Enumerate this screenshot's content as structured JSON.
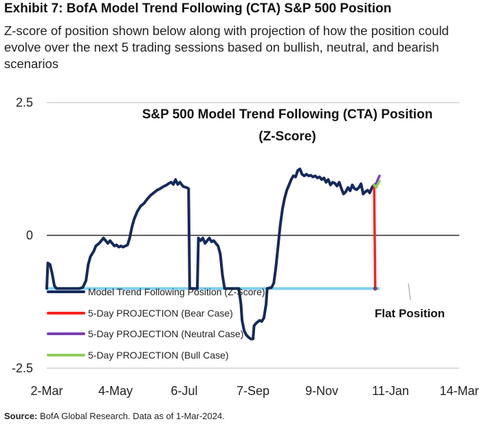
{
  "header": {
    "title": "Exhibit 7: BofA Model Trend Following (CTA) S&P 500 Position",
    "subtitle": "Z-score of position shown below along with projection of how the position could evolve over the next 5 trading sessions based on bullish, neutral, and bearish scenarios"
  },
  "footer": {
    "source_label": "Source:",
    "source_text": "BofA Global Research. Data as of 1-Mar-2024."
  },
  "colors": {
    "main": "#152a5c",
    "bear": "#ff1f1f",
    "neutral": "#7b3fb5",
    "bull": "#8ed05a",
    "flat": "#7fd0ee"
  },
  "chart_data": {
    "type": "line",
    "title_line1": "S&P 500 Model Trend Following (CTA) Position",
    "title_line2": "(Z-Score)",
    "xlabel": "",
    "ylabel": "",
    "x_range": [
      "2-Mar-2023",
      "14-Mar-2024"
    ],
    "ylim": [
      -2.5,
      2.5
    ],
    "y_tick_labels": [
      "2.5",
      "0",
      "-2.5"
    ],
    "y_tick_values": [
      2.5,
      0,
      -2.5
    ],
    "x_tick_labels": [
      "2-Mar",
      "4-May",
      "6-Jul",
      "7-Sep",
      "9-Nov",
      "11-Jan",
      "14-Mar"
    ],
    "x_tick_days": [
      0,
      63,
      126,
      189,
      252,
      315,
      378
    ],
    "flat_position_value": -1.0,
    "flat_position_label": "Flat Position",
    "series": [
      {
        "name": "Model Trend Following Position (Z-Score)",
        "color_key": "main",
        "points": [
          [
            0,
            -1.0
          ],
          [
            1,
            -0.52
          ],
          [
            3,
            -0.55
          ],
          [
            5,
            -0.72
          ],
          [
            7,
            -0.95
          ],
          [
            9,
            -1.0
          ],
          [
            30,
            -1.0
          ],
          [
            33,
            -0.98
          ],
          [
            36,
            -0.85
          ],
          [
            38,
            -0.55
          ],
          [
            40,
            -0.4
          ],
          [
            43,
            -0.3
          ],
          [
            45,
            -0.2
          ],
          [
            48,
            -0.15
          ],
          [
            50,
            -0.1
          ],
          [
            52,
            -0.05
          ],
          [
            54,
            -0.1
          ],
          [
            56,
            -0.15
          ],
          [
            58,
            -0.1
          ],
          [
            60,
            -0.15
          ],
          [
            62,
            -0.2
          ],
          [
            64,
            -0.18
          ],
          [
            66,
            -0.22
          ],
          [
            68,
            -0.2
          ],
          [
            70,
            -0.22
          ],
          [
            72,
            -0.2
          ],
          [
            74,
            -0.18
          ],
          [
            76,
            -0.05
          ],
          [
            78,
            0.15
          ],
          [
            80,
            0.3
          ],
          [
            83,
            0.45
          ],
          [
            86,
            0.55
          ],
          [
            89,
            0.6
          ],
          [
            92,
            0.68
          ],
          [
            95,
            0.75
          ],
          [
            98,
            0.8
          ],
          [
            101,
            0.85
          ],
          [
            104,
            0.88
          ],
          [
            107,
            0.92
          ],
          [
            110,
            0.95
          ],
          [
            112,
            0.98
          ],
          [
            114,
            1.0
          ],
          [
            116,
            0.96
          ],
          [
            118,
            1.05
          ],
          [
            120,
            0.96
          ],
          [
            122,
            1.0
          ],
          [
            125,
            0.92
          ],
          [
            128,
            0.9
          ],
          [
            130,
            0.88
          ],
          [
            131,
            -1.0
          ],
          [
            138,
            -1.0
          ],
          [
            139,
            -0.05
          ],
          [
            141,
            -0.1
          ],
          [
            143,
            -0.05
          ],
          [
            145,
            -0.15
          ],
          [
            147,
            -0.1
          ],
          [
            149,
            -0.05
          ],
          [
            151,
            -0.12
          ],
          [
            153,
            -0.1
          ],
          [
            155,
            -0.15
          ],
          [
            157,
            -0.2
          ],
          [
            159,
            -0.35
          ],
          [
            161,
            -0.75
          ],
          [
            163,
            -1.0
          ],
          [
            176,
            -1.0
          ],
          [
            178,
            -1.3
          ],
          [
            179,
            -1.6
          ],
          [
            181,
            -1.8
          ],
          [
            183,
            -1.88
          ],
          [
            185,
            -1.92
          ],
          [
            187,
            -1.95
          ],
          [
            189,
            -1.95
          ],
          [
            190,
            -1.7
          ],
          [
            192,
            -1.65
          ],
          [
            195,
            -1.6
          ],
          [
            197,
            -1.62
          ],
          [
            199,
            -1.55
          ],
          [
            201,
            -1.3
          ],
          [
            202,
            -1.0
          ],
          [
            206,
            -0.98
          ],
          [
            208,
            -0.9
          ],
          [
            210,
            -0.6
          ],
          [
            212,
            -0.2
          ],
          [
            214,
            0.2
          ],
          [
            216,
            0.5
          ],
          [
            218,
            0.7
          ],
          [
            220,
            0.85
          ],
          [
            222,
            0.95
          ],
          [
            224,
            1.05
          ],
          [
            226,
            1.12
          ],
          [
            228,
            1.1
          ],
          [
            230,
            1.22
          ],
          [
            232,
            1.25
          ],
          [
            234,
            1.15
          ],
          [
            236,
            1.12
          ],
          [
            238,
            1.15
          ],
          [
            240,
            1.12
          ],
          [
            242,
            1.13
          ],
          [
            244,
            1.1
          ],
          [
            246,
            1.12
          ],
          [
            248,
            1.08
          ],
          [
            250,
            1.1
          ],
          [
            252,
            1.05
          ],
          [
            254,
            1.08
          ],
          [
            256,
            1.0
          ],
          [
            258,
            1.05
          ],
          [
            260,
            0.95
          ],
          [
            262,
            1.0
          ],
          [
            264,
            0.98
          ],
          [
            266,
            0.93
          ],
          [
            268,
            1.0
          ],
          [
            270,
            0.88
          ],
          [
            272,
            0.78
          ],
          [
            274,
            0.82
          ],
          [
            276,
            0.9
          ],
          [
            278,
            0.84
          ],
          [
            280,
            0.95
          ],
          [
            282,
            0.88
          ],
          [
            284,
            0.86
          ],
          [
            286,
            0.9
          ],
          [
            288,
            0.97
          ],
          [
            290,
            0.78
          ],
          [
            292,
            0.82
          ],
          [
            294,
            0.85
          ],
          [
            296,
            0.8
          ],
          [
            298,
            0.9
          ],
          [
            300,
            0.95
          ]
        ]
      },
      {
        "name": "5-Day PROJECTION (Bear Case)",
        "color_key": "bear",
        "points": [
          [
            300,
            0.95
          ],
          [
            301,
            -1.0
          ]
        ]
      },
      {
        "name": "5-Day PROJECTION (Neutral Case)",
        "color_key": "neutral",
        "points": [
          [
            300,
            0.95
          ],
          [
            302,
            0.98
          ],
          [
            304,
            1.08
          ],
          [
            305,
            1.12
          ]
        ]
      },
      {
        "name": "5-Day PROJECTION (Bull Case)",
        "color_key": "bull",
        "points": [
          [
            300,
            0.95
          ],
          [
            302,
            0.9
          ],
          [
            303,
            0.95
          ],
          [
            305,
            1.02
          ]
        ]
      }
    ],
    "legend": [
      {
        "label": "Model Trend Following Position (Z-Score)",
        "color_key": "main"
      },
      {
        "label": "5-Day PROJECTION (Bear Case)",
        "color_key": "bear"
      },
      {
        "label": "5-Day PROJECTION (Neutral Case)",
        "color_key": "neutral"
      },
      {
        "label": "5-Day PROJECTION (Bull Case)",
        "color_key": "bull"
      }
    ]
  }
}
